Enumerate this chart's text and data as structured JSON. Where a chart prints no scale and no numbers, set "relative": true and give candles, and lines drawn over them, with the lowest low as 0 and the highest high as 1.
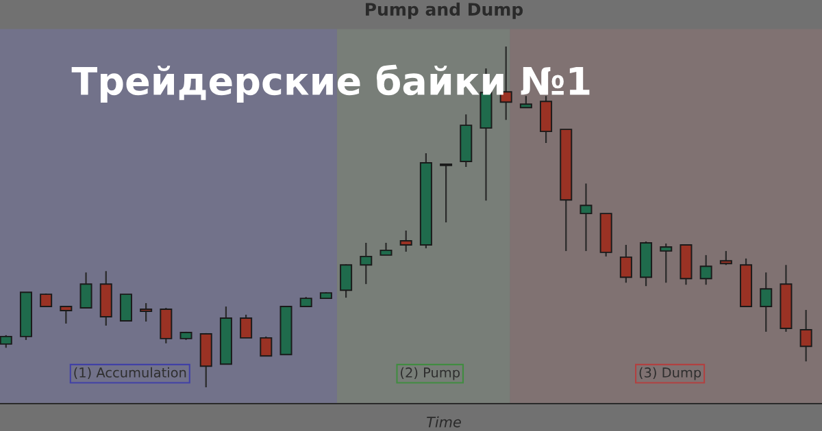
{
  "chart_data": {
    "type": "candlestick",
    "title": "Pump and Dump",
    "xlabel": "Time",
    "relative": true,
    "annotations": [
      "Трейдерские байки №1",
      "(1) Accumulation",
      "(2) Pump",
      "(3) Dump"
    ],
    "categories": [
      null,
      null,
      null,
      null,
      null,
      null,
      null,
      null,
      null,
      null,
      null,
      null,
      null,
      null,
      null,
      null,
      null,
      null,
      null,
      null,
      null,
      null,
      null,
      null,
      null,
      null,
      null,
      null,
      null,
      null,
      null,
      null,
      null,
      null,
      null,
      null,
      null,
      null,
      null,
      null,
      null
    ],
    "ohlc": [
      [
        0.127,
        0.153,
        0.116,
        0.149
      ],
      [
        0.149,
        0.279,
        0.139,
        0.279
      ],
      [
        0.273,
        0.275,
        0.237,
        0.237
      ],
      [
        0.237,
        0.239,
        0.187,
        0.225
      ],
      [
        0.233,
        0.337,
        0.233,
        0.303
      ],
      [
        0.303,
        0.341,
        0.181,
        0.207
      ],
      [
        0.195,
        0.273,
        0.195,
        0.273
      ],
      [
        0.229,
        0.247,
        0.193,
        0.223
      ],
      [
        0.229,
        0.233,
        0.129,
        0.143
      ],
      [
        0.143,
        0.163,
        0.139,
        0.161
      ],
      [
        0.157,
        0.159,
        0.0,
        0.062
      ],
      [
        0.068,
        0.237,
        0.068,
        0.203
      ],
      [
        0.203,
        0.213,
        0.145,
        0.145
      ],
      [
        0.145,
        0.149,
        0.092,
        0.092
      ],
      [
        0.096,
        0.237,
        0.096,
        0.237
      ],
      [
        0.237,
        0.265,
        0.237,
        0.261
      ],
      [
        0.261,
        0.279,
        0.261,
        0.277
      ],
      [
        0.285,
        0.361,
        0.263,
        0.359
      ],
      [
        0.359,
        0.424,
        0.303,
        0.384
      ],
      [
        0.388,
        0.424,
        0.388,
        0.402
      ],
      [
        0.43,
        0.46,
        0.398,
        0.418
      ],
      [
        0.418,
        0.687,
        0.408,
        0.659
      ],
      [
        0.651,
        0.657,
        0.484,
        0.655
      ],
      [
        0.663,
        0.801,
        0.647,
        0.769
      ],
      [
        0.761,
        0.936,
        0.548,
        0.865
      ],
      [
        0.867,
        1.0,
        0.785,
        0.837
      ],
      [
        0.821,
        0.855,
        0.821,
        0.831
      ],
      [
        0.839,
        0.855,
        0.717,
        0.751
      ],
      [
        0.757,
        0.757,
        0.4,
        0.55
      ],
      [
        0.51,
        0.598,
        0.4,
        0.534
      ],
      [
        0.51,
        0.51,
        0.384,
        0.396
      ],
      [
        0.382,
        0.418,
        0.307,
        0.323
      ],
      [
        0.323,
        0.428,
        0.297,
        0.424
      ],
      [
        0.4,
        0.422,
        0.307,
        0.412
      ],
      [
        0.418,
        0.418,
        0.301,
        0.319
      ],
      [
        0.319,
        0.388,
        0.301,
        0.355
      ],
      [
        0.371,
        0.4,
        0.359,
        0.363
      ],
      [
        0.359,
        0.378,
        0.237,
        0.237
      ],
      [
        0.237,
        0.337,
        0.163,
        0.289
      ],
      [
        0.303,
        0.359,
        0.163,
        0.173
      ],
      [
        0.169,
        0.227,
        0.076,
        0.12
      ]
    ],
    "colors": [
      "#1f6b4c",
      "#1f6b4c",
      "#9a3224",
      "#9a3224",
      "#1f6b4c",
      "#9a3224",
      "#1f6b4c",
      "#9a3224",
      "#9a3224",
      "#1f6b4c",
      "#9a3224",
      "#1f6b4c",
      "#9a3224",
      "#9a3224",
      "#1f6b4c",
      "#1f6b4c",
      "#1f6b4c",
      "#1f6b4c",
      "#1f6b4c",
      "#1f6b4c",
      "#9a3224",
      "#1f6b4c",
      "#1f6b4c",
      "#1f6b4c",
      "#1f6b4c",
      "#9a3224",
      "#1f6b4c",
      "#9a3224",
      "#9a3224",
      "#1f6b4c",
      "#9a3224",
      "#9a3224",
      "#1f6b4c",
      "#1f6b4c",
      "#9a3224",
      "#1f6b4c",
      "#9a3224",
      "#9a3224",
      "#1f6b4c",
      "#9a3224",
      "#9a3224"
    ]
  }
}
